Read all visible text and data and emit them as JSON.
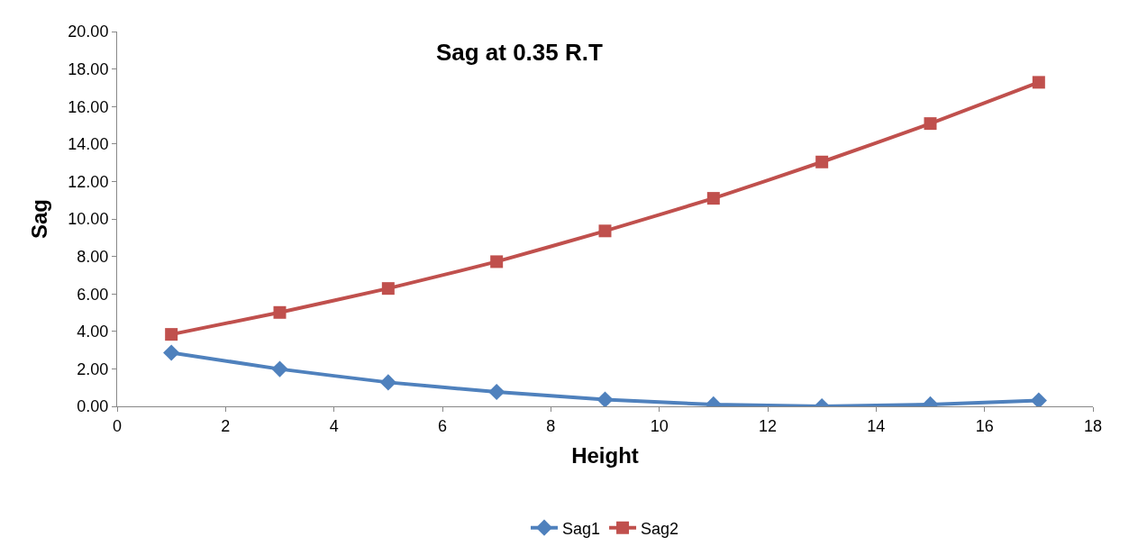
{
  "chart_data": {
    "type": "line",
    "title": "Sag at 0.35 R.T",
    "xlabel": "Height",
    "ylabel": "Sag",
    "x": [
      1,
      3,
      5,
      7,
      9,
      11,
      13,
      15,
      17
    ],
    "series": [
      {
        "name": "Sag1",
        "color": "#4f81bd",
        "marker": "diamond",
        "values": [
          2.86,
          1.99,
          1.28,
          0.77,
          0.36,
          0.1,
          0.0,
          0.1,
          0.31
        ]
      },
      {
        "name": "Sag2",
        "color": "#c0504d",
        "marker": "square",
        "values": [
          3.84,
          5.01,
          6.29,
          7.72,
          9.36,
          11.1,
          13.04,
          15.09,
          17.29
        ]
      }
    ],
    "xlim": [
      0,
      18
    ],
    "xticks": [
      0,
      2,
      4,
      6,
      8,
      10,
      12,
      14,
      16,
      18
    ],
    "ylim": [
      0,
      20
    ],
    "yticks": [
      {
        "value": 0,
        "label": "0.00"
      },
      {
        "value": 2,
        "label": "2.00"
      },
      {
        "value": 4,
        "label": "4.00"
      },
      {
        "value": 6,
        "label": "6.00"
      },
      {
        "value": 8,
        "label": "8.00"
      },
      {
        "value": 10,
        "label": "10.00"
      },
      {
        "value": 12,
        "label": "12.00"
      },
      {
        "value": 14,
        "label": "14.00"
      },
      {
        "value": 16,
        "label": "16.00"
      },
      {
        "value": 18,
        "label": "18.00"
      },
      {
        "value": 20,
        "label": "20.00"
      }
    ],
    "legend": "bottom",
    "line_style": "solid"
  }
}
